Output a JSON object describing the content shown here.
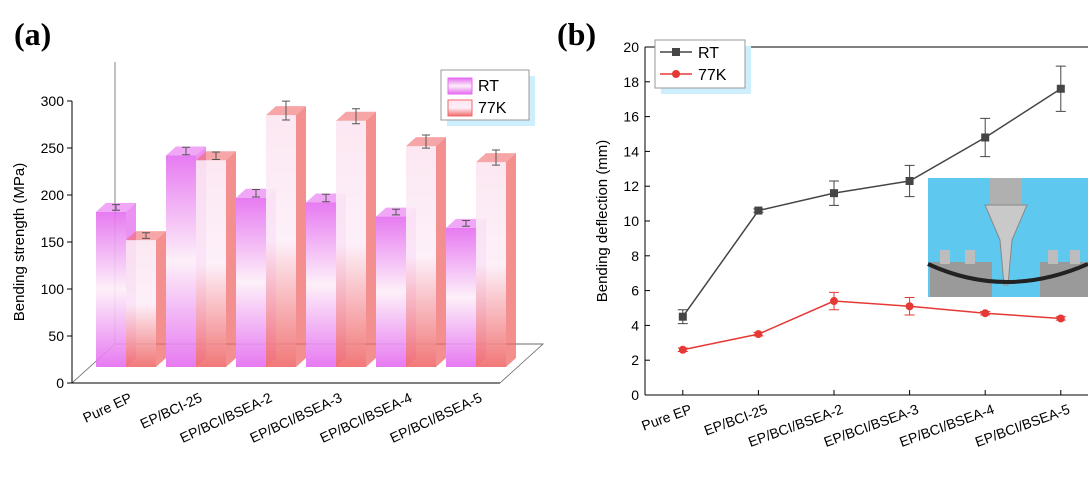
{
  "chart_data": [
    {
      "type": "bar",
      "panel_label": "(a)",
      "y_label": "Bending strength (MPa)",
      "categories": [
        "Pure EP",
        "EP/BCI-25",
        "EP/BCI/BSEA-2",
        "EP/BCI/BSEA-3",
        "EP/BCI/BSEA-4",
        "EP/BCI/BSEA-5"
      ],
      "series": [
        {
          "name": "RT",
          "color": "#e46cf0",
          "values": [
            165,
            225,
            180,
            175,
            160,
            148
          ],
          "errors": [
            3,
            4,
            4,
            4,
            3,
            3
          ]
        },
        {
          "name": "77K",
          "color": "#f06a6a",
          "values": [
            135,
            220,
            268,
            262,
            235,
            218
          ],
          "errors": [
            3,
            4,
            10,
            8,
            7,
            8
          ]
        }
      ],
      "ylim": [
        0,
        300
      ],
      "yticks": [
        0,
        50,
        100,
        150,
        200,
        250,
        300
      ]
    },
    {
      "type": "line",
      "panel_label": "(b)",
      "y_label": "Bending deflection (mm)",
      "categories": [
        "Pure EP",
        "EP/BCI-25",
        "EP/BCI/BSEA-2",
        "EP/BCI/BSEA-3",
        "EP/BCI/BSEA-4",
        "EP/BCI/BSEA-5"
      ],
      "series": [
        {
          "name": "RT",
          "color": "#454545",
          "marker": "square",
          "values": [
            4.5,
            10.6,
            11.6,
            12.3,
            14.8,
            17.6
          ],
          "errors": [
            0.4,
            0.1,
            0.7,
            0.9,
            1.1,
            1.3
          ]
        },
        {
          "name": "77K",
          "color": "#e53935",
          "marker": "circle",
          "values": [
            2.6,
            3.5,
            5.4,
            5.1,
            4.7,
            4.4
          ],
          "errors": [
            0.1,
            0.1,
            0.5,
            0.5,
            0.1,
            0.1
          ]
        }
      ],
      "ylim": [
        0,
        20
      ],
      "yticks": [
        0,
        2,
        4,
        6,
        8,
        10,
        12,
        14,
        16,
        18,
        20
      ]
    }
  ]
}
